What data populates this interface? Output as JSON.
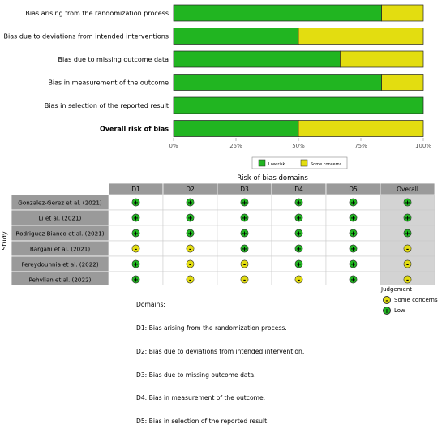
{
  "colors": {
    "low": "#21b521",
    "some": "#e3dd10",
    "header_bg": "#9a9a9a",
    "row_bg": "#d3d3d3",
    "overall_bg": "#d3d3d3"
  },
  "chart_data": [
    {
      "type": "bar",
      "orientation": "horizontal",
      "stacked": true,
      "categories": [
        "Bias arising from the randomization process",
        "Bias due to deviations from intended interventions",
        "Bias due to missing outcome data",
        "Bias in measurement of the outcome",
        "Bias in selection of the reported result",
        "Overall risk of bias"
      ],
      "series": [
        {
          "name": "Low risk",
          "values": [
            83.3,
            50,
            66.7,
            83.3,
            100,
            50
          ]
        },
        {
          "name": "Some concerns",
          "values": [
            16.7,
            50,
            33.3,
            16.7,
            0,
            50
          ]
        }
      ],
      "xticks": [
        "0%",
        "25%",
        "50%",
        "75%",
        "100%"
      ],
      "xlim": [
        0,
        100
      ],
      "legend_position": "bottom-center"
    },
    {
      "type": "table",
      "title": "Risk of bias domains",
      "ylabel": "Study",
      "columns": [
        "D1",
        "D2",
        "D3",
        "D4",
        "D5",
        "Overall"
      ],
      "studies": [
        "Gonzalez-Gerez et al. (2021)",
        "Li et al. (2021)",
        "Rodriguez-Bianco et al. (2021)",
        "Bargahi et al. (2021)",
        "Fereydounnia et al. (2022)",
        "Pehvlian et al. (2022)"
      ],
      "judgements": [
        [
          "low",
          "low",
          "low",
          "low",
          "low",
          "low"
        ],
        [
          "low",
          "low",
          "low",
          "low",
          "low",
          "low"
        ],
        [
          "low",
          "low",
          "low",
          "low",
          "low",
          "low"
        ],
        [
          "some",
          "some",
          "low",
          "low",
          "low",
          "some"
        ],
        [
          "low",
          "some",
          "some",
          "low",
          "low",
          "some"
        ],
        [
          "low",
          "some",
          "some",
          "some",
          "low",
          "some"
        ]
      ],
      "symbols": {
        "low": "+",
        "some": "-"
      }
    }
  ],
  "domains_key": {
    "heading": "Domains:",
    "lines": [
      "D1: Bias arising from the randomization process.",
      "D2: Bias due to deviations from intended intervention.",
      "D3: Bias due to missing outcome data.",
      "D4: Bias in measurement of the outcome.",
      "D5: Bias in selection of the reported result."
    ]
  },
  "judgement_legend": {
    "title": "Judgement",
    "some_label": "Some concerns",
    "low_label": "Low"
  }
}
